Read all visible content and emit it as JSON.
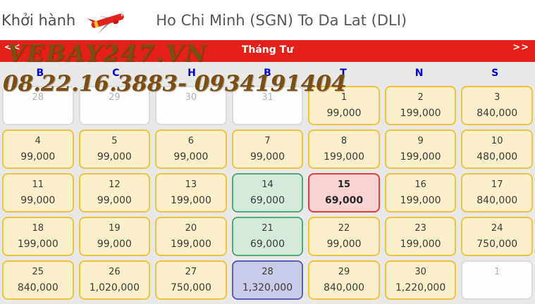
{
  "header": {
    "departure_label": "Khởi hành",
    "route_title": "Ho Chi Minh (SGN) To Da Lat (DLI)",
    "logo_icon": "vietjet-plane-logo"
  },
  "month_bar": {
    "prev_label": "<<",
    "next_label": ">>",
    "month_label": "Tháng Tư"
  },
  "watermark": {
    "line1": "VEBAY247.VN",
    "line2": "08.22.16.3883- 0934191404"
  },
  "weekdays": [
    "B",
    "C",
    "H",
    "B",
    "T",
    "N",
    "S"
  ],
  "calendar": {
    "cells": [
      {
        "day": "28",
        "price": "",
        "type": "other"
      },
      {
        "day": "29",
        "price": "",
        "type": "other"
      },
      {
        "day": "30",
        "price": "",
        "type": "other"
      },
      {
        "day": "31",
        "price": "",
        "type": "other"
      },
      {
        "day": "1",
        "price": "99,000",
        "type": "yellow"
      },
      {
        "day": "2",
        "price": "199,000",
        "type": "yellow"
      },
      {
        "day": "3",
        "price": "840,000",
        "type": "yellow"
      },
      {
        "day": "4",
        "price": "99,000",
        "type": "yellow"
      },
      {
        "day": "5",
        "price": "99,000",
        "type": "yellow"
      },
      {
        "day": "6",
        "price": "99,000",
        "type": "yellow"
      },
      {
        "day": "7",
        "price": "99,000",
        "type": "yellow"
      },
      {
        "day": "8",
        "price": "199,000",
        "type": "yellow"
      },
      {
        "day": "9",
        "price": "199,000",
        "type": "yellow"
      },
      {
        "day": "10",
        "price": "480,000",
        "type": "yellow"
      },
      {
        "day": "11",
        "price": "99,000",
        "type": "yellow"
      },
      {
        "day": "12",
        "price": "99,000",
        "type": "yellow"
      },
      {
        "day": "13",
        "price": "199,000",
        "type": "yellow"
      },
      {
        "day": "14",
        "price": "69,000",
        "type": "green"
      },
      {
        "day": "15",
        "price": "69,000",
        "type": "red"
      },
      {
        "day": "16",
        "price": "199,000",
        "type": "yellow"
      },
      {
        "day": "17",
        "price": "840,000",
        "type": "yellow"
      },
      {
        "day": "18",
        "price": "199,000",
        "type": "yellow"
      },
      {
        "day": "19",
        "price": "99,000",
        "type": "yellow"
      },
      {
        "day": "20",
        "price": "199,000",
        "type": "yellow"
      },
      {
        "day": "21",
        "price": "69,000",
        "type": "green"
      },
      {
        "day": "22",
        "price": "99,000",
        "type": "yellow"
      },
      {
        "day": "23",
        "price": "199,000",
        "type": "yellow"
      },
      {
        "day": "24",
        "price": "750,000",
        "type": "yellow"
      },
      {
        "day": "25",
        "price": "840,000",
        "type": "yellow"
      },
      {
        "day": "26",
        "price": "1,020,000",
        "type": "yellow"
      },
      {
        "day": "27",
        "price": "750,000",
        "type": "yellow"
      },
      {
        "day": "28",
        "price": "1,320,000",
        "type": "blue"
      },
      {
        "day": "29",
        "price": "840,000",
        "type": "yellow"
      },
      {
        "day": "30",
        "price": "1,220,000",
        "type": "yellow"
      },
      {
        "day": "1",
        "price": "",
        "type": "other"
      }
    ]
  },
  "colors": {
    "brand_red": "#e32119",
    "weekday_blue": "#0000c8",
    "watermark_brown": "#7b4e12",
    "cell_yellow_bg": "#fbf0c9",
    "cell_yellow_border": "#f0c53e",
    "cell_green_bg": "#d4ebdc",
    "cell_green_border": "#53a877",
    "cell_red_bg": "#f9d2d2",
    "cell_red_border": "#e23c3c",
    "cell_blue_bg": "#c9cce9",
    "cell_blue_border": "#5b5eb8",
    "cell_disabled_bg": "#fdfdfd"
  }
}
